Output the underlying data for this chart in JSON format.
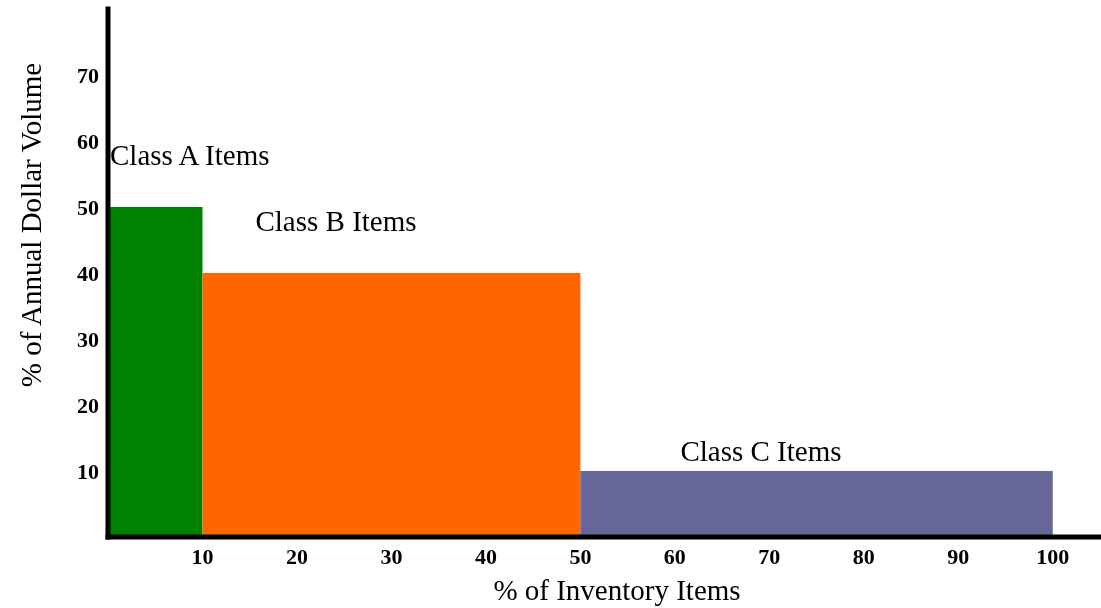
{
  "chart_data": {
    "type": "histogram",
    "bins": [
      0,
      10,
      50,
      100
    ],
    "values": [
      50,
      40,
      10
    ],
    "colors": [
      "#008000",
      "#ff6600",
      "#666699"
    ],
    "xlabel": "% of Inventory Items",
    "ylabel": "% of Annual Dollar Volume",
    "xlim": [
      0,
      105
    ],
    "ylim": [
      0,
      80
    ],
    "xticks": [
      10,
      20,
      30,
      40,
      50,
      60,
      70,
      80,
      90,
      100
    ],
    "yticks": [
      10,
      20,
      30,
      40,
      50,
      60,
      70
    ],
    "annotations": [
      "Class A Items",
      "Class B Items",
      "Class C Items"
    ]
  }
}
